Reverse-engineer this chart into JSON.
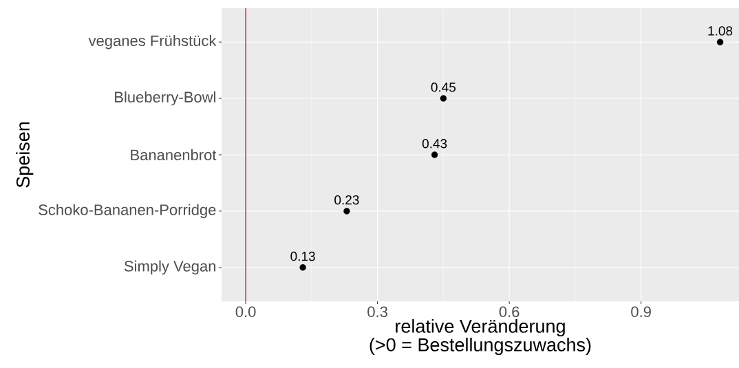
{
  "chart_data": {
    "type": "scatter",
    "orientation": "horizontal",
    "categories": [
      "veganes Frühstück",
      "Blueberry-Bowl",
      "Bananenbrot",
      "Schoko-Bananen-Porridge",
      "Simply Vegan"
    ],
    "values": [
      1.08,
      0.45,
      0.43,
      0.23,
      0.13
    ],
    "color": "#000000",
    "marker": "circle",
    "data_labels": true,
    "xlim": [
      -0.055,
      1.123
    ],
    "xticks": [
      {
        "value": 0,
        "label": "0.0"
      },
      0.3,
      0.6,
      0.9
    ],
    "xlabel": "relative Veränderung\n(>0 = Bestellungszuwachs)",
    "ylabel": "Speisen",
    "ref_lines": [
      {
        "axis": "x",
        "value": 0,
        "color": "#e41a1c"
      }
    ],
    "grid": true
  }
}
